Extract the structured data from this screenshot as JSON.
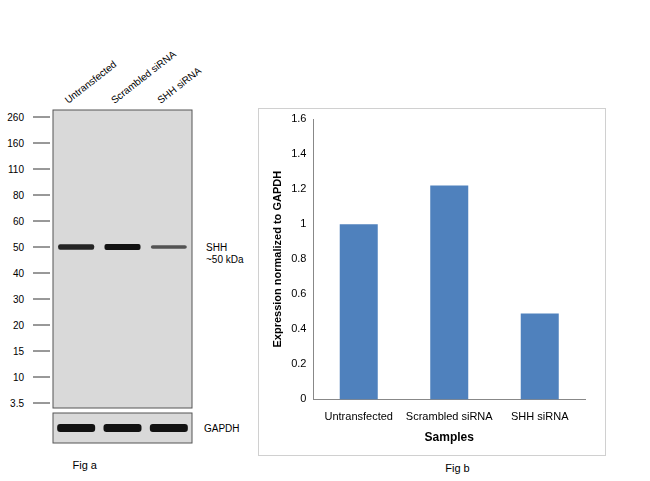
{
  "chart_data": {
    "type": "bar",
    "x_label": "Samples",
    "y_label": "Expression normalized to GAPDH",
    "categories": [
      "Untransfected",
      "Scrambled siRNA",
      "SHH siRNA"
    ],
    "values": [
      1.0,
      1.22,
      0.49
    ],
    "color": "#4f81bd",
    "ylim": [
      0,
      1.6
    ],
    "yticks": [
      0,
      0.2,
      0.4,
      0.6,
      0.8,
      1,
      1.2,
      1.4,
      1.6
    ],
    "grid": false
  },
  "blot": {
    "lanes": [
      "Untransfected",
      "Scrambled siRNA",
      "SHH  siRNA"
    ],
    "markers": [
      260,
      160,
      110,
      80,
      60,
      50,
      40,
      30,
      20,
      15,
      10,
      3.5
    ],
    "band_marker": 50,
    "band_label": [
      "SHH",
      "~50 kDa"
    ],
    "loading_control": "GAPDH"
  },
  "captions": [
    "Fig a",
    "Fig b"
  ]
}
